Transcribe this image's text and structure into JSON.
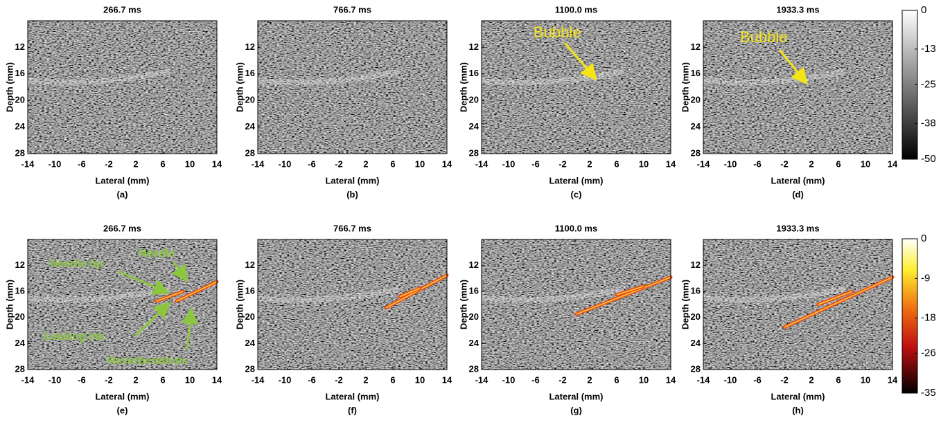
{
  "panels": [
    {
      "title": "266.7 ms",
      "label": "(a)",
      "x_label": "Lateral (mm)",
      "y_label": "Depth (mm)",
      "xlim": [
        -14,
        14
      ],
      "ylim": [
        8,
        28
      ],
      "xticks": [
        -14,
        -10,
        -6,
        -2,
        2,
        6,
        10,
        14
      ],
      "yticks": [
        12,
        16,
        20,
        24,
        28
      ],
      "annotations": []
    },
    {
      "title": "766.7 ms",
      "label": "(b)",
      "x_label": "Lateral (mm)",
      "y_label": "Depth (mm)",
      "xlim": [
        -14,
        14
      ],
      "ylim": [
        8,
        28
      ],
      "xticks": [
        -14,
        -10,
        -6,
        -2,
        2,
        6,
        10,
        14
      ],
      "yticks": [
        12,
        16,
        20,
        24,
        28
      ],
      "annotations": []
    },
    {
      "title": "1100.0 ms",
      "label": "(c)",
      "x_label": "Lateral (mm)",
      "y_label": "Depth (mm)",
      "xlim": [
        -14,
        14
      ],
      "ylim": [
        8,
        28
      ],
      "xticks": [
        -14,
        -10,
        -6,
        -2,
        2,
        6,
        10,
        14
      ],
      "yticks": [
        12,
        16,
        20,
        24,
        28
      ],
      "annotations": [
        "Bubble"
      ]
    },
    {
      "title": "1933.3 ms",
      "label": "(d)",
      "x_label": "Lateral (mm)",
      "y_label": "Depth (mm)",
      "xlim": [
        -14,
        14
      ],
      "ylim": [
        8,
        28
      ],
      "xticks": [
        -14,
        -10,
        -6,
        -2,
        2,
        6,
        10,
        14
      ],
      "yticks": [
        12,
        16,
        20,
        24,
        28
      ],
      "annotations": [
        "Bubble"
      ]
    },
    {
      "title": "266.7 ms",
      "label": "(e)",
      "x_label": "Lateral (mm)",
      "y_label": "Depth (mm)",
      "xlim": [
        -14,
        14
      ],
      "ylim": [
        8,
        28
      ],
      "xticks": [
        -14,
        -10,
        -6,
        -2,
        2,
        6,
        10,
        14
      ],
      "yticks": [
        12,
        16,
        20,
        24,
        28
      ],
      "annotations": [
        "Needle tip",
        "Needle",
        "Leaking ink",
        "Reverberations"
      ]
    },
    {
      "title": "766.7 ms",
      "label": "(f)",
      "x_label": "Lateral (mm)",
      "y_label": "Depth (mm)",
      "xlim": [
        -14,
        14
      ],
      "ylim": [
        8,
        28
      ],
      "xticks": [
        -14,
        -10,
        -6,
        -2,
        2,
        6,
        10,
        14
      ],
      "yticks": [
        12,
        16,
        20,
        24,
        28
      ],
      "annotations": []
    },
    {
      "title": "1100.0 ms",
      "label": "(g)",
      "x_label": "Lateral (mm)",
      "y_label": "Depth (mm)",
      "xlim": [
        -14,
        14
      ],
      "ylim": [
        8,
        28
      ],
      "xticks": [
        -14,
        -10,
        -6,
        -2,
        2,
        6,
        10,
        14
      ],
      "yticks": [
        12,
        16,
        20,
        24,
        28
      ],
      "annotations": []
    },
    {
      "title": "1933.3 ms",
      "label": "(h)",
      "x_label": "Lateral (mm)",
      "y_label": "Depth (mm)",
      "xlim": [
        -14,
        14
      ],
      "ylim": [
        8,
        28
      ],
      "xticks": [
        -14,
        -10,
        -6,
        -2,
        2,
        6,
        10,
        14
      ],
      "yticks": [
        12,
        16,
        20,
        24,
        28
      ],
      "annotations": []
    }
  ],
  "colorbars": [
    {
      "ticks": [
        0,
        -13,
        -25,
        -38,
        -50
      ]
    },
    {
      "ticks": [
        0,
        -9,
        -18,
        -26,
        -35
      ]
    }
  ]
}
